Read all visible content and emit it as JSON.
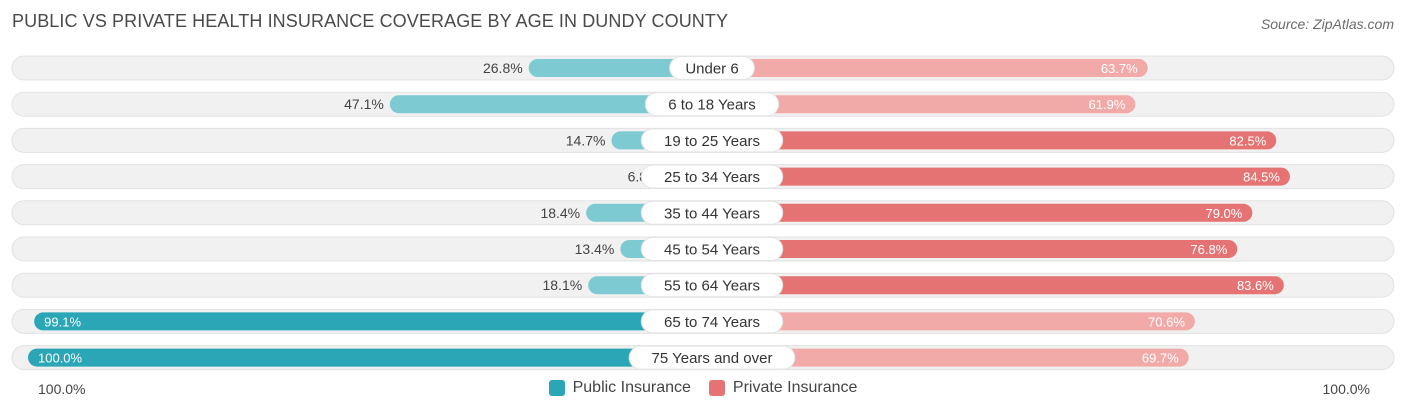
{
  "header": {
    "title": "PUBLIC VS PRIVATE HEALTH INSURANCE COVERAGE BY AGE IN DUNDY COUNTY",
    "source": "Source: ZipAtlas.com"
  },
  "axis": {
    "left_label": "100.0%",
    "right_label": "100.0%"
  },
  "colors": {
    "public_strong": "#2aa6b6",
    "public_light": "#7ecad3",
    "private_strong": "#e57373",
    "private_light": "#f2aaa9",
    "track": "#f1f1f1"
  },
  "chart_data": {
    "type": "bar",
    "orientation": "horizontal-diverging",
    "title": "PUBLIC VS PRIVATE HEALTH INSURANCE COVERAGE BY AGE IN DUNDY COUNTY",
    "categories": [
      "Under 6",
      "6 to 18 Years",
      "19 to 25 Years",
      "25 to 34 Years",
      "35 to 44 Years",
      "45 to 54 Years",
      "55 to 64 Years",
      "65 to 74 Years",
      "75 Years and over"
    ],
    "series": [
      {
        "name": "Public Insurance",
        "values": [
          26.8,
          47.1,
          14.7,
          6.8,
          18.4,
          13.4,
          18.1,
          99.1,
          100.0
        ],
        "labels": [
          "26.8%",
          "47.1%",
          "14.7%",
          "6.8%",
          "18.4%",
          "13.4%",
          "18.1%",
          "99.1%",
          "100.0%"
        ]
      },
      {
        "name": "Private Insurance",
        "values": [
          63.7,
          61.9,
          82.5,
          84.5,
          79.0,
          76.8,
          83.6,
          70.6,
          69.7
        ],
        "labels": [
          "63.7%",
          "61.9%",
          "82.5%",
          "84.5%",
          "79.0%",
          "76.8%",
          "83.6%",
          "70.6%",
          "69.7%"
        ]
      }
    ],
    "xlim": [
      -100,
      100
    ],
    "legend_position": "bottom-center"
  }
}
